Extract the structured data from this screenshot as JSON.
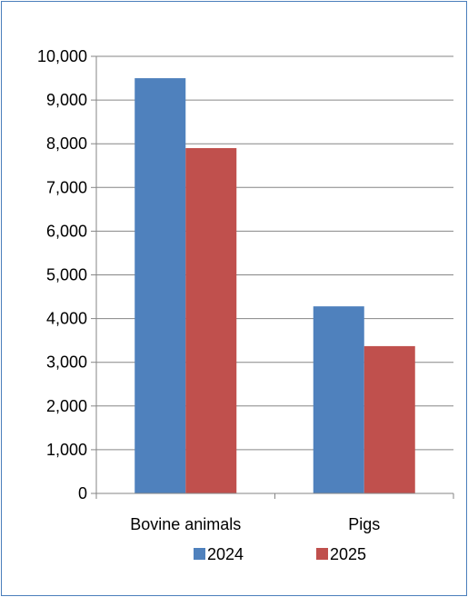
{
  "chart_data": {
    "type": "bar",
    "categories": [
      "Bovine animals",
      "Pigs"
    ],
    "series": [
      {
        "name": "2024",
        "values": [
          9500,
          4280
        ],
        "color": "#4f81bd"
      },
      {
        "name": "2025",
        "values": [
          7900,
          3370
        ],
        "color": "#c0504d"
      }
    ],
    "ylim": [
      0,
      10000
    ],
    "yticks": [
      "0",
      "1,000",
      "2,000",
      "3,000",
      "4,000",
      "5,000",
      "6,000",
      "7,000",
      "8,000",
      "9,000",
      "10,000"
    ],
    "grid": true,
    "legend": "bottom",
    "title": "",
    "xlabel": "",
    "ylabel": ""
  }
}
